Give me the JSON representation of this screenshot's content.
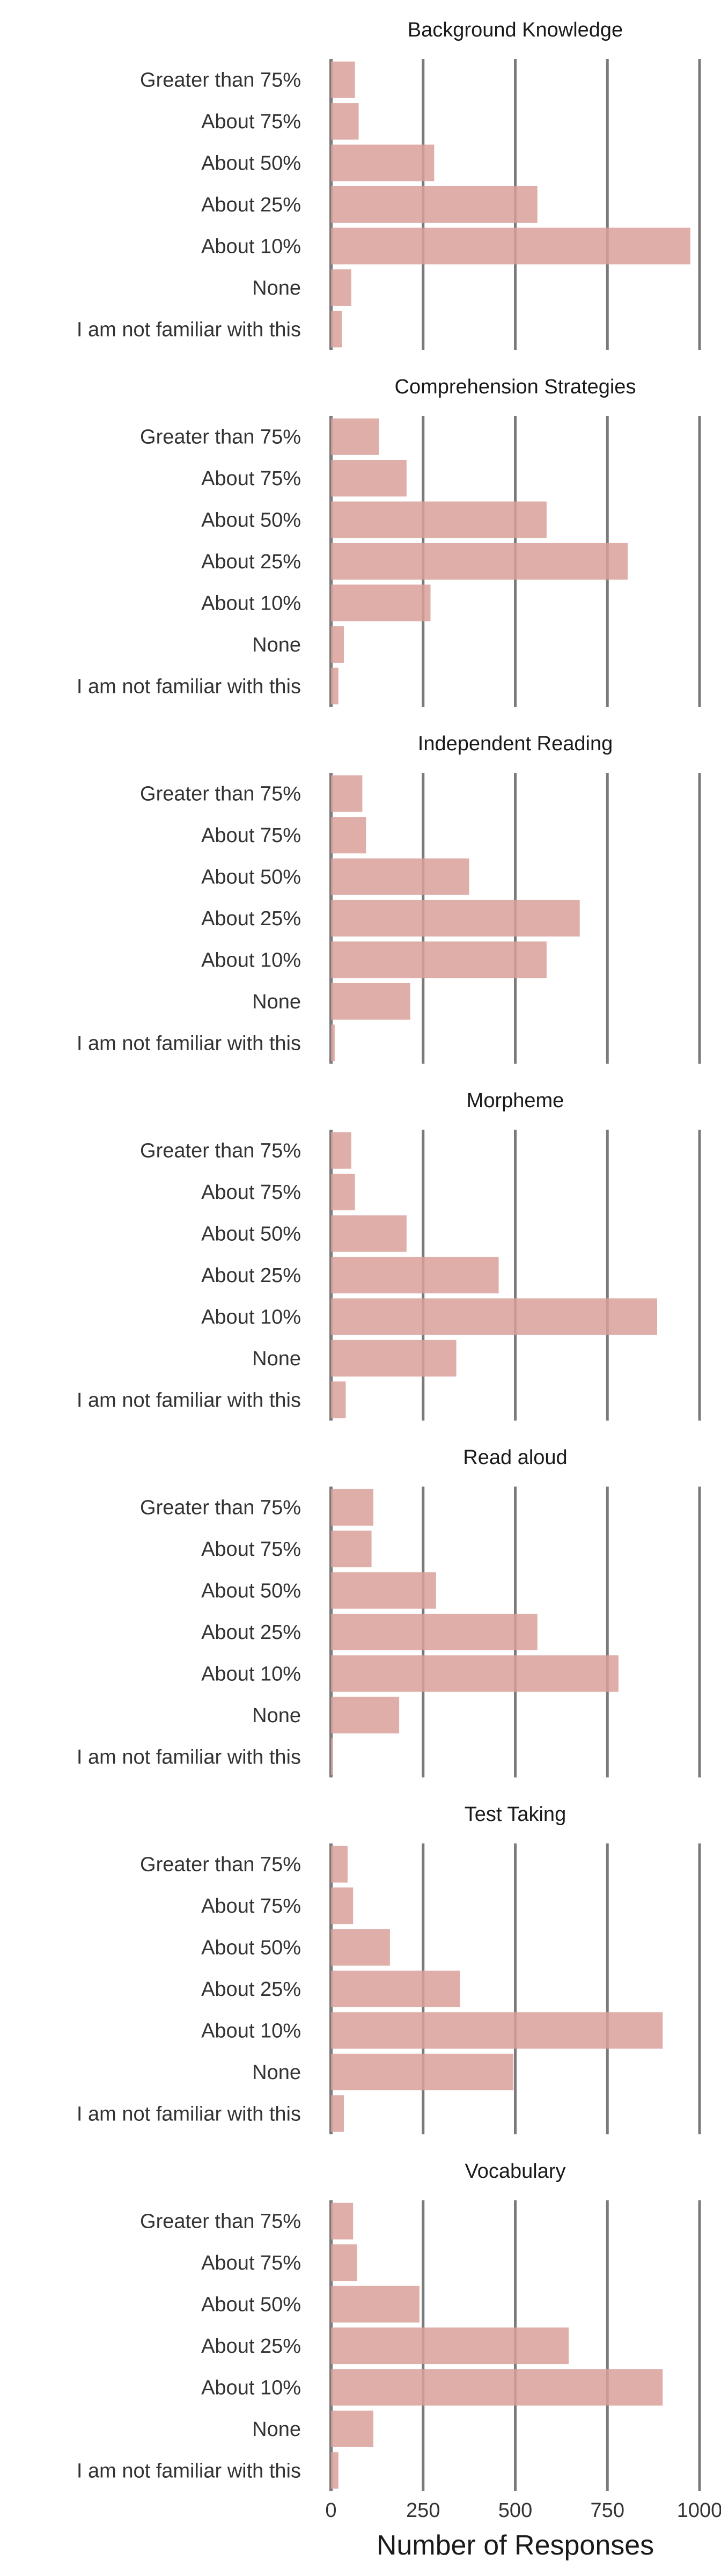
{
  "chart_data": {
    "type": "bar",
    "orientation": "horizontal",
    "categories": [
      "Greater than 75%",
      "About 75%",
      "About 50%",
      "About 25%",
      "About 10%",
      "None",
      "I am not familiar with this"
    ],
    "panels": [
      {
        "title": "Background Knowledge",
        "values": [
          65,
          75,
          280,
          560,
          975,
          55,
          30
        ]
      },
      {
        "title": "Comprehension Strategies",
        "values": [
          130,
          205,
          585,
          805,
          270,
          35,
          20
        ]
      },
      {
        "title": "Independent Reading",
        "values": [
          85,
          95,
          375,
          675,
          585,
          215,
          10
        ]
      },
      {
        "title": "Morpheme",
        "values": [
          55,
          65,
          205,
          455,
          885,
          340,
          40
        ]
      },
      {
        "title": "Read aloud",
        "values": [
          115,
          110,
          285,
          560,
          780,
          185,
          5
        ]
      },
      {
        "title": "Test Taking",
        "values": [
          45,
          60,
          160,
          350,
          900,
          495,
          35
        ]
      },
      {
        "title": "Vocabulary",
        "values": [
          60,
          70,
          240,
          645,
          900,
          115,
          20
        ]
      }
    ],
    "xlabel": "Number of Responses",
    "ylabel": "",
    "xlim": [
      0,
      1000
    ],
    "x_ticks": [
      "0",
      "250",
      "500",
      "750",
      "1000"
    ],
    "x_tick_values": [
      0,
      250,
      500,
      750,
      1000
    ],
    "grid": "vertical",
    "bar_color": "#d9a09a",
    "grid_color": "#7a7a7a"
  }
}
